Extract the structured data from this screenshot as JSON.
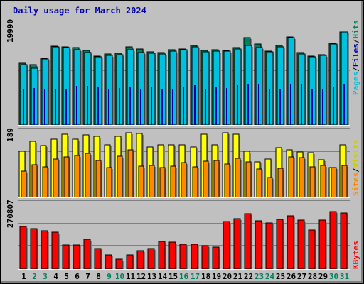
{
  "title": "Daily usage for March 2024",
  "colors": {
    "pages": "#00c0e0",
    "files": "#0000aa",
    "hits": "#00805f",
    "visits": "#ffff00",
    "sites": "#ff8800",
    "kbytes": "#ff0000",
    "weekday": "#000000",
    "weekend": "#00805f",
    "background": "#c0c0c0"
  },
  "legend": {
    "pages": "Pages",
    "files": "Files",
    "hits": "Hits",
    "sep": "/",
    "sites": "Sites",
    "visits": "Visits",
    "kbytes": "KBytes"
  },
  "chart_data": [
    {
      "type": "bar",
      "name": "hits-files-pages",
      "ymax_label": "19990",
      "ylim": [
        0,
        19990
      ],
      "categories": [
        "1",
        "2",
        "3",
        "4",
        "5",
        "6",
        "7",
        "8",
        "9",
        "10",
        "11",
        "12",
        "13",
        "14",
        "15",
        "16",
        "17",
        "18",
        "19",
        "20",
        "21",
        "22",
        "23",
        "24",
        "25",
        "26",
        "27",
        "28",
        "29",
        "30",
        "31"
      ],
      "series": [
        {
          "name": "Hits",
          "values": [
            11900,
            11600,
            12900,
            15200,
            15000,
            14900,
            14400,
            13300,
            13700,
            13800,
            15000,
            14600,
            14100,
            13900,
            14500,
            14700,
            15300,
            14400,
            14500,
            14400,
            14900,
            16800,
            15600,
            14300,
            15300,
            17000,
            14000,
            13300,
            13500,
            15700,
            17900
          ]
        },
        {
          "name": "Files",
          "values": [
            6800,
            7100,
            6800,
            6900,
            6800,
            7500,
            7500,
            7200,
            6900,
            7100,
            7300,
            7000,
            7300,
            6900,
            6900,
            7300,
            7700,
            6900,
            7200,
            7100,
            7700,
            8000,
            7800,
            6900,
            6900,
            8000,
            7900,
            7000,
            6900,
            7200,
            8000
          ]
        },
        {
          "name": "Pages",
          "values": [
            11700,
            10900,
            12800,
            15000,
            14900,
            14500,
            14000,
            13100,
            13400,
            13500,
            14500,
            13900,
            13800,
            13700,
            14300,
            14500,
            15100,
            14100,
            14300,
            14300,
            14700,
            15400,
            14900,
            14100,
            15100,
            16800,
            13700,
            13200,
            13400,
            15600,
            17900
          ]
        }
      ]
    },
    {
      "type": "bar",
      "name": "visits-sites",
      "ymax_label": "189",
      "ylim": [
        0,
        189
      ],
      "categories": [
        "1",
        "2",
        "3",
        "4",
        "5",
        "6",
        "7",
        "8",
        "9",
        "10",
        "11",
        "12",
        "13",
        "14",
        "15",
        "16",
        "17",
        "18",
        "19",
        "20",
        "21",
        "22",
        "23",
        "24",
        "25",
        "26",
        "27",
        "28",
        "29",
        "30",
        "31"
      ],
      "series": [
        {
          "name": "Visits",
          "values": [
            132,
            160,
            148,
            167,
            180,
            167,
            179,
            175,
            151,
            175,
            185,
            183,
            145,
            151,
            150,
            150,
            144,
            180,
            150,
            185,
            180,
            132,
            102,
            110,
            143,
            137,
            130,
            129,
            108,
            85,
            150
          ]
        },
        {
          "name": "Sites",
          "values": [
            75,
            94,
            87,
            109,
            115,
            119,
            125,
            105,
            86,
            117,
            136,
            90,
            92,
            85,
            90,
            100,
            88,
            103,
            106,
            95,
            112,
            102,
            81,
            56,
            84,
            116,
            113,
            88,
            91,
            85,
            91
          ]
        }
      ]
    },
    {
      "type": "bar",
      "name": "kbytes",
      "ymax_label": "270807",
      "ylim": [
        0,
        270807
      ],
      "categories": [
        "1",
        "2",
        "3",
        "4",
        "5",
        "6",
        "7",
        "8",
        "9",
        "10",
        "11",
        "12",
        "13",
        "14",
        "15",
        "16",
        "17",
        "18",
        "19",
        "20",
        "21",
        "22",
        "23",
        "24",
        "25",
        "26",
        "27",
        "28",
        "29",
        "30",
        "31"
      ],
      "series": [
        {
          "name": "KBytes",
          "values": [
            176000,
            167000,
            158000,
            152000,
            100000,
            100000,
            125000,
            86000,
            60000,
            40000,
            58000,
            76000,
            85000,
            114000,
            111000,
            103000,
            104000,
            96000,
            90000,
            198000,
            209000,
            231000,
            199000,
            190000,
            207000,
            222000,
            203000,
            163000,
            203000,
            238000,
            233000
          ]
        }
      ]
    }
  ]
}
